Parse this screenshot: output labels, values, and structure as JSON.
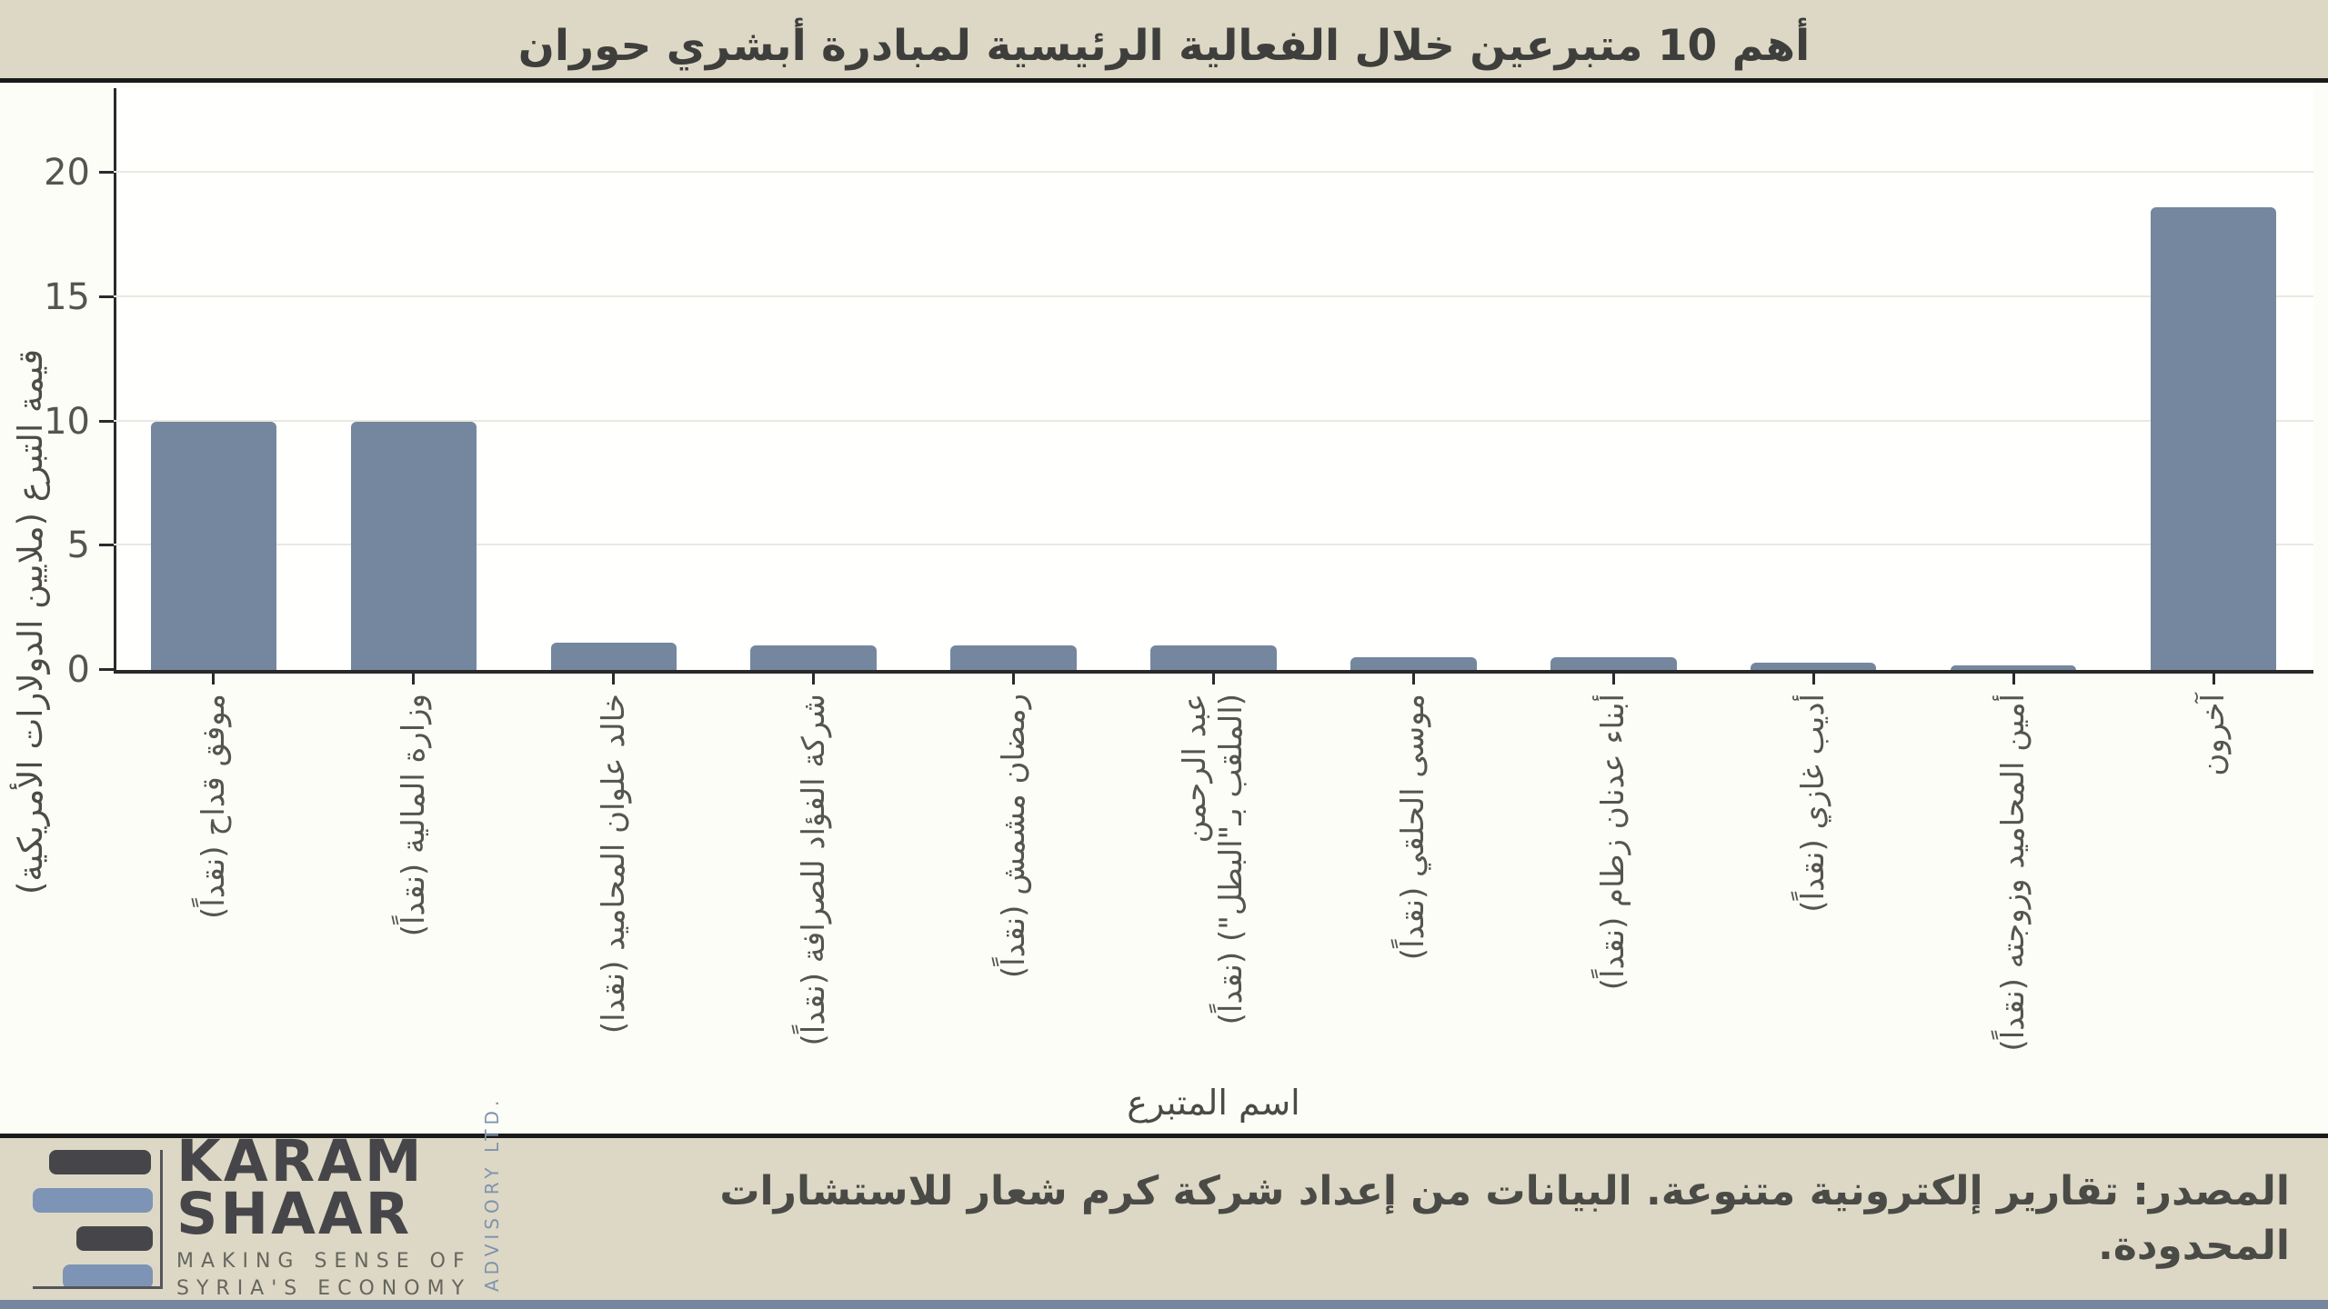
{
  "header": {
    "title": "أهم 10 متبرعين خلال الفعالية الرئيسية لمبادرة أبشري حوران"
  },
  "chart_data": {
    "type": "bar",
    "title": "أهم 10 متبرعين خلال الفعالية الرئيسية لمبادرة أبشري حوران",
    "xlabel": "اسم المتبرع",
    "ylabel": "قيمة التبرع (ملايين الدولارات الأمريكية)",
    "ylim": [
      0,
      23.4
    ],
    "yticks": [
      0,
      5,
      10,
      15,
      20
    ],
    "grid": "horizontal",
    "legend": "none",
    "bar_color": "#74879e",
    "categories": [
      "موفق قداح (نقداً)",
      "وزارة المالية (نقداً)",
      "خالد علوان المحاميد (نقدا)",
      "شركة الفؤاد للصرافة (نقداً)",
      "رمضان مشمش (نقداً)",
      "عبد الرحمن (الملقب بـ\"البطل\") (نقداً)",
      "موسى الحلقي (نقداً)",
      "أبناء عدنان زطام (نقداً)",
      "أديب غازي (نقداً)",
      "أمين المحاميد وزوجته (نقداً)",
      "آخرون"
    ],
    "label_lines": [
      [
        "موفق قداح (نقداً)"
      ],
      [
        "وزارة المالية (نقداً)"
      ],
      [
        "خالد علوان المحاميد (نقدا)"
      ],
      [
        "شركة الفؤاد للصرافة (نقداً)"
      ],
      [
        "رمضان مشمش (نقداً)"
      ],
      [
        "عبد الرحمن",
        "(الملقب بـ\"البطل\") (نقداً)"
      ],
      [
        "موسى الحلقي (نقداً)"
      ],
      [
        "أبناء عدنان زطام (نقداً)"
      ],
      [
        "أديب غازي (نقداً)"
      ],
      [
        "أمين المحاميد وزوجته (نقداً)"
      ],
      [
        "آخرون"
      ]
    ],
    "values": [
      10,
      10,
      1.1,
      1.0,
      1.0,
      1.0,
      0.5,
      0.5,
      0.3,
      0.2,
      18.6
    ]
  },
  "footer": {
    "logo": {
      "line1": "KARAM",
      "line2": "SHAAR",
      "tagline1": "MAKING SENSE OF",
      "tagline2": "SYRIA'S ECONOMY",
      "vertical": "ADVISORY LTD."
    },
    "source": "المصدر: تقارير إلكترونية متنوعة. البيانات من إعداد شركة كرم شعار للاستشارات المحدودة."
  },
  "colors": {
    "background_band": "#ddd8c5",
    "chart_background": "#fffffe",
    "bar": "#74879e",
    "rule": "#1a1a1a",
    "logo_blue": "#7d94b6",
    "logo_dark": "#46464a",
    "bottom_strip": "#74879e"
  }
}
